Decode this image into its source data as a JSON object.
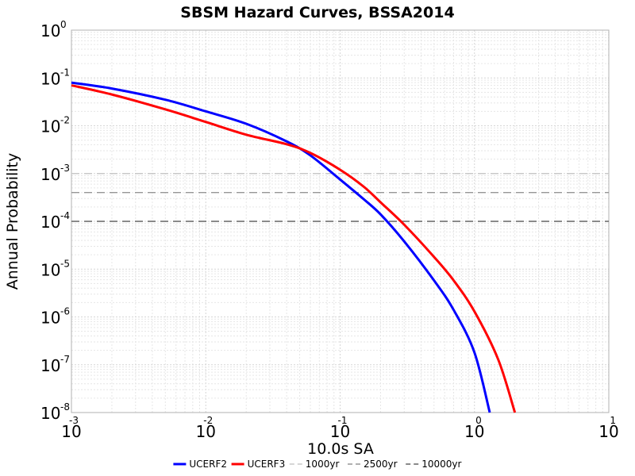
{
  "chart_data": {
    "type": "line",
    "title": "SBSM Hazard Curves, BSSA2014",
    "xlabel": "10.0s SA",
    "ylabel": "Annual Probability",
    "xscale": "log",
    "yscale": "log",
    "xlim": [
      0.001,
      10
    ],
    "ylim": [
      1e-08,
      1
    ],
    "grid": true,
    "legend_position": "bottom",
    "x_ticks": [
      {
        "base": "10",
        "exp": "-3",
        "value": 0.001
      },
      {
        "base": "10",
        "exp": "-2",
        "value": 0.01
      },
      {
        "base": "10",
        "exp": "-1",
        "value": 0.1
      },
      {
        "base": "10",
        "exp": "0",
        "value": 1
      },
      {
        "base": "10",
        "exp": "1",
        "value": 10
      }
    ],
    "y_ticks": [
      {
        "base": "10",
        "exp": "0",
        "value": 1
      },
      {
        "base": "10",
        "exp": "-1",
        "value": 0.1
      },
      {
        "base": "10",
        "exp": "-2",
        "value": 0.01
      },
      {
        "base": "10",
        "exp": "-3",
        "value": 0.001
      },
      {
        "base": "10",
        "exp": "-4",
        "value": 0.0001
      },
      {
        "base": "10",
        "exp": "-5",
        "value": 1e-05
      },
      {
        "base": "10",
        "exp": "-6",
        "value": 1e-06
      },
      {
        "base": "10",
        "exp": "-7",
        "value": 1e-07
      },
      {
        "base": "10",
        "exp": "-8",
        "value": 1e-08
      }
    ],
    "series": [
      {
        "name": "UCERF2",
        "color": "#0000ff",
        "x": [
          0.001,
          0.002,
          0.005,
          0.01,
          0.02,
          0.04,
          0.06,
          0.1,
          0.15,
          0.2,
          0.3,
          0.5,
          0.7,
          1.0,
          1.3
        ],
        "y": [
          0.08,
          0.06,
          0.035,
          0.02,
          0.011,
          0.0047,
          0.0024,
          0.00075,
          0.00029,
          0.00014,
          3.8e-05,
          5.8e-06,
          1.4e-06,
          1.8e-07,
          1e-08
        ]
      },
      {
        "name": "UCERF3",
        "color": "#ff0000",
        "x": [
          0.001,
          0.002,
          0.005,
          0.01,
          0.02,
          0.04,
          0.06,
          0.1,
          0.15,
          0.2,
          0.3,
          0.5,
          0.7,
          1.0,
          1.5,
          2.0
        ],
        "y": [
          0.07,
          0.045,
          0.022,
          0.012,
          0.0065,
          0.0041,
          0.0027,
          0.0012,
          0.00053,
          0.00025,
          8.5e-05,
          1.8e-05,
          5.8e-06,
          1.3e-06,
          1.3e-07,
          1e-08
        ]
      }
    ],
    "reference_lines": [
      {
        "name": "1000yr",
        "y": 0.001,
        "color": "#c8c8c8"
      },
      {
        "name": "2500yr",
        "y": 0.0004,
        "color": "#969696"
      },
      {
        "name": "10000yr",
        "y": 0.0001,
        "color": "#646464"
      }
    ]
  }
}
